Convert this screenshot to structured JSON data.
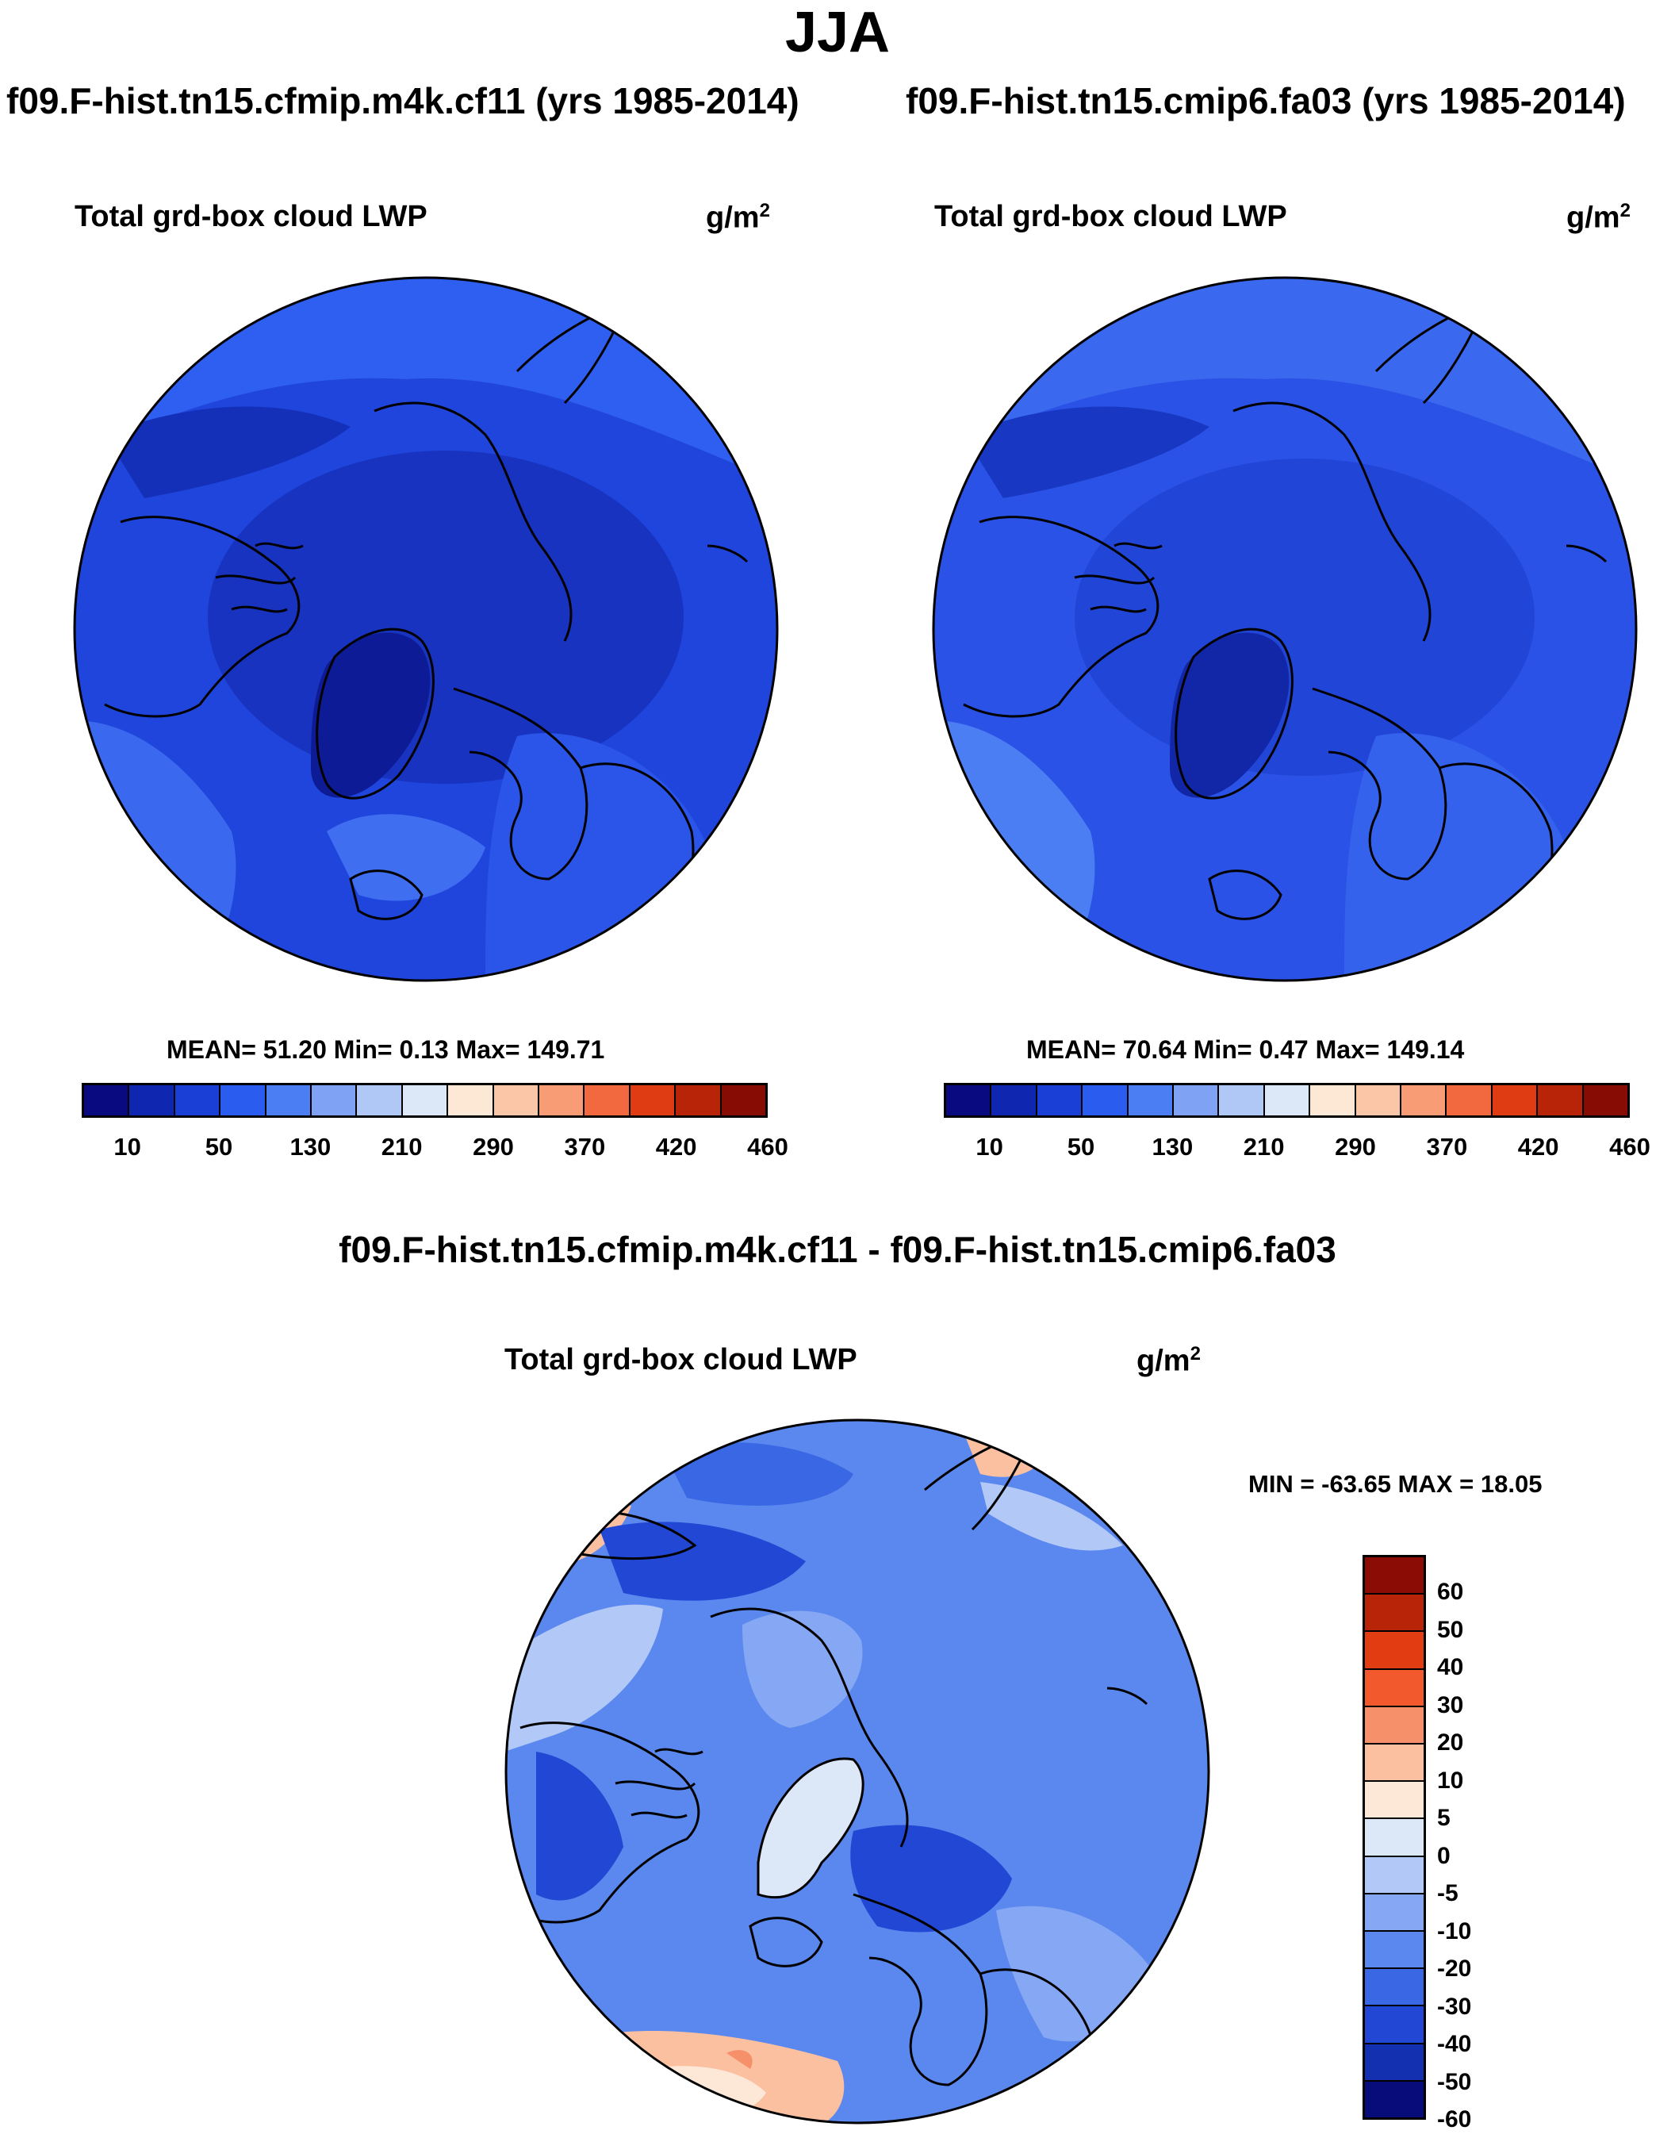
{
  "title": "JJA",
  "chart_data": [
    {
      "type": "heatmap",
      "projection": "north-polar-stereographic",
      "case": "f09.F-hist.tn15.cfmip.m4k.cf11 (yrs 1985-2014)",
      "variable": "Total grd-box cloud LWP",
      "units": "g/m",
      "units_exp": "2",
      "stats": "MEAN=  51.20  Min=    0.13  Max= 149.71",
      "mean": 51.2,
      "min": 0.13,
      "max": 149.71,
      "colorbar_ticks": [
        "10",
        "50",
        "130",
        "210",
        "290",
        "370",
        "420",
        "460"
      ]
    },
    {
      "type": "heatmap",
      "projection": "north-polar-stereographic",
      "case": "f09.F-hist.tn15.cmip6.fa03 (yrs 1985-2014)",
      "variable": "Total grd-box cloud LWP",
      "units": "g/m",
      "units_exp": "2",
      "stats": "MEAN=  70.64  Min=    0.47  Max= 149.14",
      "mean": 70.64,
      "min": 0.47,
      "max": 149.14,
      "colorbar_ticks": [
        "10",
        "50",
        "130",
        "210",
        "290",
        "370",
        "420",
        "460"
      ]
    },
    {
      "type": "heatmap",
      "projection": "north-polar-stereographic",
      "case": "f09.F-hist.tn15.cfmip.m4k.cf11 - f09.F-hist.tn15.cmip6.fa03",
      "variable": "Total grd-box cloud LWP",
      "units": "g/m",
      "units_exp": "2",
      "stats": "MIN = -63.65 MAX =  18.05",
      "min": -63.65,
      "max": 18.05,
      "colorbar_ticks": [
        "60",
        "50",
        "40",
        "30",
        "20",
        "10",
        "5",
        "0",
        "-5",
        "-10",
        "-20",
        "-30",
        "-40",
        "-50",
        "-60"
      ]
    }
  ],
  "colors": {
    "abs_scale": [
      "#0a0a80",
      "#0f26b0",
      "#1a3fd6",
      "#2a5cf0",
      "#4a7ef2",
      "#7fa2f4",
      "#b0c8f6",
      "#dce8f8",
      "#fde8d6",
      "#fbc6a8",
      "#f79c74",
      "#f2683f",
      "#e03c14",
      "#b82408",
      "#870c04"
    ],
    "diff_scale": [
      "#8a0c04",
      "#b82408",
      "#e23c12",
      "#f25a2e",
      "#f5906a",
      "#fac0a0",
      "#fde8d8",
      "#dce8f8",
      "#b2c8f6",
      "#86a8f4",
      "#5b88ee",
      "#3a68e4",
      "#2147d4",
      "#1230b0",
      "#080c7a"
    ]
  }
}
